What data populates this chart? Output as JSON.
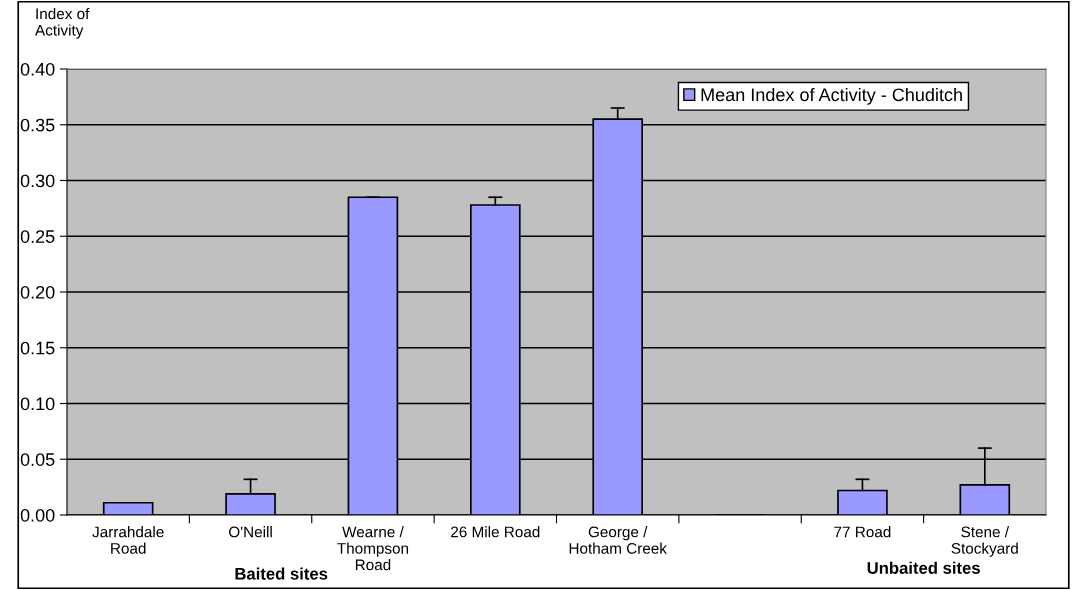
{
  "chart_data": {
    "type": "bar",
    "ylabel": "Index of Activity",
    "categories": [
      "Jarrahdale\nRoad",
      "O'Neill",
      "Wearne /\nThompson\nRoad",
      "26 Mile Road",
      "George /\nHotham Creek",
      null,
      "77 Road",
      "Stene /\nStockyard"
    ],
    "series": [
      {
        "name": "Mean Index of Activity - Chuditch",
        "color": "#9999ff",
        "values": [
          0.011,
          0.019,
          0.285,
          0.278,
          0.355,
          null,
          0.022,
          0.027
        ],
        "errors": [
          null,
          [
            0.019,
            0.032
          ],
          [
            0.285,
            0.285
          ],
          [
            0.278,
            0.285
          ],
          [
            0.355,
            0.365
          ],
          null,
          [
            0.022,
            0.032
          ],
          [
            0.027,
            0.06
          ]
        ]
      }
    ],
    "ylim": [
      0,
      0.4
    ],
    "yticks": [
      {
        "value": 0,
        "label": "0.00"
      },
      {
        "value": 0.05,
        "label": "0.05"
      },
      {
        "value": 0.1,
        "label": "0.10"
      },
      {
        "value": 0.15,
        "label": "0.15"
      },
      {
        "value": 0.2,
        "label": "0.20"
      },
      {
        "value": 0.25,
        "label": "0.25"
      },
      {
        "value": 0.3,
        "label": "0.30"
      },
      {
        "value": 0.35,
        "label": "0.35"
      },
      {
        "value": 0.4,
        "label": "0.40"
      }
    ],
    "grid": "y",
    "legend": "top right",
    "annotations": [
      "Baited sites",
      "Unbaited sites"
    ]
  }
}
